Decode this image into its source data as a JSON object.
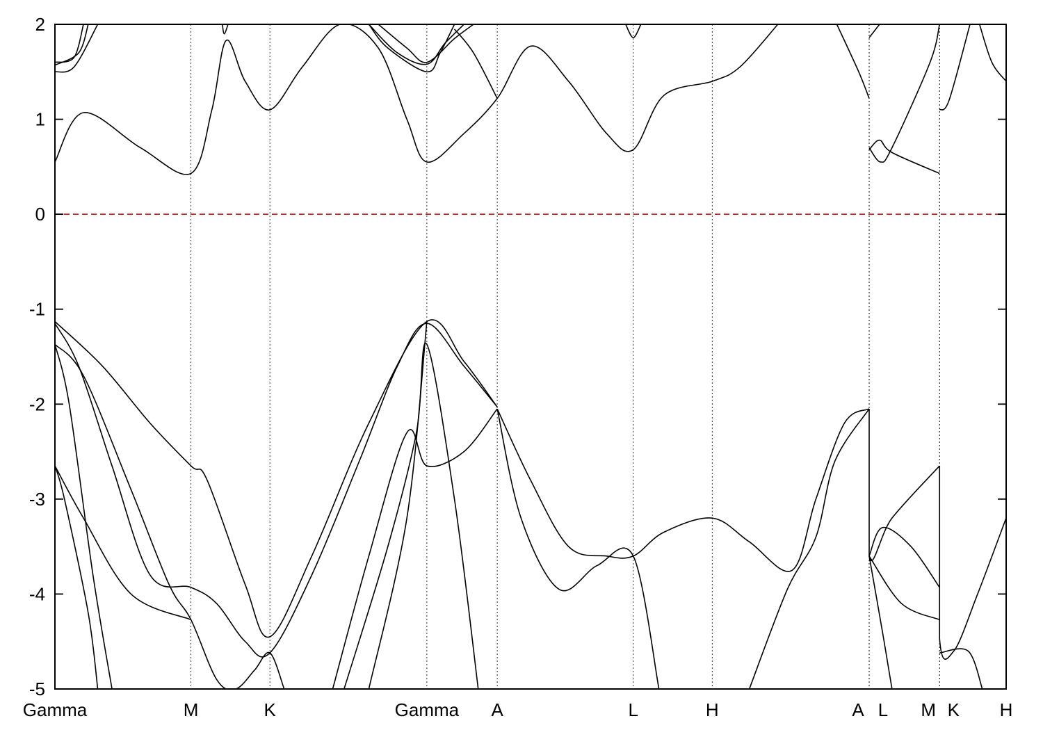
{
  "chart_data": {
    "type": "line",
    "title": "",
    "xlabel": "",
    "ylabel": "",
    "ylim": [
      -5,
      2
    ],
    "yticks": [
      "2",
      "1",
      "0",
      "-1",
      "-2",
      "-3",
      "-4",
      "-5"
    ],
    "grid": false,
    "fermi_level": 0,
    "colors": {
      "bands": "#000000",
      "fermi": "#d62020"
    },
    "k_path": [
      {
        "label": "Gamma",
        "x": 0
      },
      {
        "label": "M",
        "x": 0.143
      },
      {
        "label": "K",
        "x": 0.226
      },
      {
        "label": "Gamma",
        "x": 0.391
      },
      {
        "label": "A",
        "x": 0.465
      },
      {
        "label": "L",
        "x": 0.608
      },
      {
        "label": "H",
        "x": 0.691
      },
      {
        "label": "A",
        "x": 0.856
      },
      {
        "label": "L",
        "x": 0.856
      },
      {
        "label": "M",
        "x": 0.93
      },
      {
        "label": "K",
        "x": 0.93
      },
      {
        "label": "H",
        "x": 1.0
      }
    ],
    "series": [
      {
        "values": [
          [
            0,
            0.55
          ],
          [
            0.03,
            1.07
          ],
          [
            0.09,
            0.7
          ],
          [
            0.143,
            0.43
          ],
          [
            0.165,
            1.1
          ],
          [
            0.18,
            1.83
          ],
          [
            0.2,
            1.4
          ],
          [
            0.226,
            1.1
          ],
          [
            0.26,
            1.55
          ],
          [
            0.3,
            2.0
          ],
          [
            0.34,
            1.75
          ],
          [
            0.37,
            1.0
          ],
          [
            0.391,
            0.55
          ],
          [
            0.43,
            0.85
          ],
          [
            0.465,
            1.22
          ],
          [
            0.5,
            1.77
          ],
          [
            0.54,
            1.4
          ],
          [
            0.58,
            0.85
          ],
          [
            0.608,
            0.68
          ],
          [
            0.64,
            1.25
          ],
          [
            0.691,
            1.4
          ],
          [
            0.72,
            1.55
          ],
          [
            0.76,
            2.0
          ]
        ]
      },
      {
        "values": [
          [
            0,
            1.5
          ],
          [
            0.02,
            1.55
          ],
          [
            0.045,
            2.0
          ]
        ]
      },
      {
        "values": [
          [
            0,
            1.57
          ],
          [
            0.025,
            1.7
          ],
          [
            0.035,
            2.0
          ]
        ]
      },
      {
        "values": [
          [
            0,
            1.6
          ],
          [
            0.02,
            1.65
          ],
          [
            0.03,
            2.0
          ]
        ]
      },
      {
        "values": [
          [
            0.176,
            2.0
          ],
          [
            0.178,
            1.9
          ],
          [
            0.182,
            2.0
          ]
        ]
      },
      {
        "values": [
          [
            0.33,
            2.0
          ],
          [
            0.35,
            1.75
          ],
          [
            0.391,
            1.5
          ],
          [
            0.405,
            1.7
          ],
          [
            0.42,
            2.0
          ]
        ]
      },
      {
        "values": [
          [
            0.33,
            2.0
          ],
          [
            0.36,
            1.7
          ],
          [
            0.391,
            1.58
          ],
          [
            0.41,
            1.8
          ],
          [
            0.43,
            2.0
          ]
        ]
      },
      {
        "values": [
          [
            0.34,
            2.0
          ],
          [
            0.37,
            1.75
          ],
          [
            0.391,
            1.6
          ],
          [
            0.42,
            1.85
          ],
          [
            0.44,
            2.0
          ]
        ]
      },
      {
        "values": [
          [
            0.42,
            1.95
          ],
          [
            0.44,
            1.7
          ],
          [
            0.465,
            1.22
          ]
        ]
      },
      {
        "values": [
          [
            0.6,
            2.0
          ],
          [
            0.608,
            1.86
          ],
          [
            0.616,
            2.0
          ]
        ]
      },
      {
        "values": [
          [
            0.822,
            2.0
          ],
          [
            0.845,
            1.5
          ],
          [
            0.856,
            1.22
          ]
        ]
      },
      {
        "values": [
          [
            0.856,
            1.86
          ],
          [
            0.863,
            1.95
          ],
          [
            0.867,
            2.0
          ]
        ]
      },
      {
        "values": [
          [
            0.856,
            0.68
          ],
          [
            0.867,
            0.78
          ],
          [
            0.88,
            0.65
          ],
          [
            0.93,
            0.43
          ]
        ]
      },
      {
        "values": [
          [
            0.856,
            0.7
          ],
          [
            0.868,
            0.55
          ],
          [
            0.88,
            0.7
          ],
          [
            0.92,
            1.6
          ],
          [
            0.93,
            2.0
          ]
        ]
      },
      {
        "values": [
          [
            0.93,
            1.1
          ],
          [
            0.94,
            1.2
          ],
          [
            0.962,
            2.0
          ]
        ]
      },
      {
        "values": [
          [
            0.972,
            2.0
          ],
          [
            0.985,
            1.6
          ],
          [
            1.0,
            1.4
          ]
        ]
      },
      {
        "values": [
          [
            0,
            -1.13
          ],
          [
            0.05,
            -1.6
          ],
          [
            0.1,
            -2.2
          ],
          [
            0.143,
            -2.65
          ],
          [
            0.16,
            -2.8
          ],
          [
            0.2,
            -3.9
          ],
          [
            0.226,
            -4.45
          ],
          [
            0.27,
            -3.6
          ],
          [
            0.33,
            -2.2
          ],
          [
            0.391,
            -1.13
          ],
          [
            0.43,
            -1.55
          ],
          [
            0.465,
            -2.03
          ]
        ]
      },
      {
        "values": [
          [
            0,
            -1.15
          ],
          [
            0.025,
            -1.6
          ],
          [
            0.06,
            -2.65
          ],
          [
            0.1,
            -3.8
          ],
          [
            0.143,
            -3.93
          ],
          [
            0.17,
            -4.1
          ],
          [
            0.2,
            -4.5
          ],
          [
            0.226,
            -4.62
          ],
          [
            0.27,
            -3.8
          ],
          [
            0.32,
            -2.6
          ],
          [
            0.36,
            -1.6
          ],
          [
            0.391,
            -1.15
          ],
          [
            0.43,
            -1.6
          ],
          [
            0.465,
            -2.03
          ]
        ]
      },
      {
        "values": [
          [
            0,
            -1.37
          ],
          [
            0.03,
            -1.7
          ],
          [
            0.08,
            -2.9
          ],
          [
            0.12,
            -3.9
          ],
          [
            0.143,
            -4.27
          ],
          [
            0.17,
            -4.9
          ],
          [
            0.19,
            -5.0
          ],
          [
            0.21,
            -4.8
          ],
          [
            0.226,
            -4.62
          ],
          [
            0.241,
            -5.0
          ]
        ]
      },
      {
        "values": [
          [
            0,
            -1.37
          ],
          [
            0.015,
            -2.0
          ],
          [
            0.04,
            -3.8
          ],
          [
            0.06,
            -5.0
          ]
        ]
      },
      {
        "values": [
          [
            0,
            -2.65
          ],
          [
            0.01,
            -3.0
          ],
          [
            0.035,
            -4.2
          ],
          [
            0.045,
            -5.0
          ]
        ]
      },
      {
        "values": [
          [
            0,
            -2.65
          ],
          [
            0.03,
            -3.2
          ],
          [
            0.08,
            -4.0
          ],
          [
            0.143,
            -4.27
          ]
        ]
      },
      {
        "values": [
          [
            0.292,
            -5.0
          ],
          [
            0.33,
            -3.6
          ],
          [
            0.37,
            -2.3
          ],
          [
            0.391,
            -2.65
          ],
          [
            0.43,
            -2.5
          ],
          [
            0.465,
            -2.05
          ]
        ]
      },
      {
        "values": [
          [
            0.304,
            -5.0
          ],
          [
            0.35,
            -3.5
          ],
          [
            0.38,
            -2.3
          ],
          [
            0.391,
            -1.37
          ],
          [
            0.42,
            -3.0
          ],
          [
            0.445,
            -5.0
          ]
        ]
      },
      {
        "values": [
          [
            0.33,
            -5.0
          ],
          [
            0.37,
            -3.2
          ],
          [
            0.391,
            -1.13
          ]
        ]
      },
      {
        "values": [
          [
            0.465,
            -2.05
          ],
          [
            0.5,
            -2.8
          ],
          [
            0.54,
            -3.5
          ],
          [
            0.58,
            -3.6
          ],
          [
            0.608,
            -3.6
          ],
          [
            0.64,
            -3.35
          ],
          [
            0.691,
            -3.2
          ],
          [
            0.73,
            -3.45
          ],
          [
            0.775,
            -3.75
          ],
          [
            0.8,
            -3.0
          ],
          [
            0.83,
            -2.2
          ],
          [
            0.856,
            -2.05
          ]
        ]
      },
      {
        "values": [
          [
            0.465,
            -2.05
          ],
          [
            0.49,
            -3.2
          ],
          [
            0.53,
            -3.95
          ],
          [
            0.57,
            -3.7
          ],
          [
            0.608,
            -3.6
          ],
          [
            0.635,
            -5.0
          ]
        ]
      },
      {
        "values": [
          [
            0.73,
            -5.0
          ],
          [
            0.77,
            -3.95
          ],
          [
            0.8,
            -3.4
          ],
          [
            0.82,
            -2.6
          ],
          [
            0.856,
            -2.05
          ]
        ]
      },
      {
        "values": [
          [
            0.856,
            -2.05
          ],
          [
            0.856,
            -3.6
          ],
          [
            0.88,
            -3.2
          ],
          [
            0.93,
            -2.65
          ]
        ]
      },
      {
        "values": [
          [
            0.856,
            -3.6
          ],
          [
            0.87,
            -3.3
          ],
          [
            0.9,
            -3.5
          ],
          [
            0.93,
            -3.93
          ]
        ]
      },
      {
        "values": [
          [
            0.856,
            -3.6
          ],
          [
            0.89,
            -4.1
          ],
          [
            0.93,
            -4.27
          ]
        ]
      },
      {
        "values": [
          [
            0.856,
            -3.6
          ],
          [
            0.87,
            -4.4
          ],
          [
            0.88,
            -5.0
          ]
        ]
      },
      {
        "values": [
          [
            0.93,
            -2.65
          ],
          [
            0.93,
            -4.47
          ],
          [
            0.945,
            -4.6
          ],
          [
            0.97,
            -4.0
          ],
          [
            1.0,
            -3.2
          ]
        ]
      },
      {
        "values": [
          [
            0.93,
            -4.62
          ],
          [
            0.96,
            -4.6
          ],
          [
            0.975,
            -5.0
          ]
        ]
      }
    ]
  }
}
